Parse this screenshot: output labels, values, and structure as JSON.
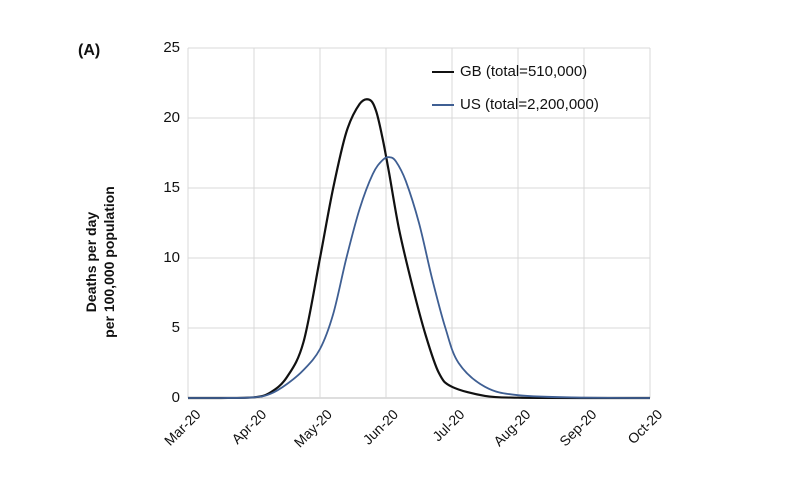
{
  "chart_data": {
    "type": "line",
    "panel_label": "(A)",
    "ylabel": [
      "Deaths per day",
      "per 100,000 population"
    ],
    "ylim": [
      0,
      25
    ],
    "yticks": [
      "0",
      "5",
      "10",
      "15",
      "20",
      "25"
    ],
    "xticks": [
      "Mar-20",
      "Apr-20",
      "May-20",
      "Jun-20",
      "Jul-20",
      "Aug-20",
      "Sep-20",
      "Oct-20"
    ],
    "grid": true,
    "legend_position": "top-right",
    "series": [
      {
        "name": "GB (total=510,000)",
        "color": "#111111",
        "x": [
          0,
          0.5,
          1,
          1.25,
          1.5,
          1.75,
          2,
          2.2,
          2.4,
          2.6,
          2.75,
          2.85,
          2.95,
          3.05,
          3.2,
          3.4,
          3.6,
          3.8,
          4,
          4.5,
          5,
          6,
          7
        ],
        "values": [
          0,
          0,
          0.05,
          0.4,
          1.5,
          4,
          10,
          15,
          19,
          21,
          21.3,
          20.5,
          18.5,
          16,
          12,
          8,
          4.5,
          1.8,
          0.8,
          0.15,
          0.02,
          0,
          0
        ]
      },
      {
        "name": "US (total=2,200,000)",
        "color": "#3f5f93",
        "x": [
          0,
          0.5,
          1,
          1.25,
          1.5,
          1.75,
          2,
          2.2,
          2.4,
          2.6,
          2.8,
          2.95,
          3.05,
          3.15,
          3.3,
          3.5,
          3.7,
          3.9,
          4.1,
          4.5,
          5,
          6,
          7
        ],
        "values": [
          0,
          0,
          0.05,
          0.3,
          1,
          2,
          3.5,
          6,
          10,
          13.5,
          16,
          17,
          17.2,
          16.9,
          15.5,
          12.5,
          8.5,
          5,
          2.5,
          0.8,
          0.2,
          0.02,
          0
        ]
      }
    ]
  }
}
